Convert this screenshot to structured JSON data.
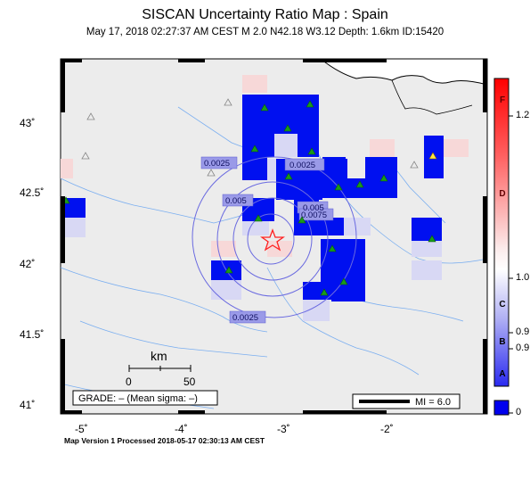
{
  "title": "SISCAN Uncertainty Ratio Map : Spain",
  "subtitle": "May 17, 2018 02:27:37 AM CEST   M 2.0    N42.18 W3.12    Depth: 1.6km    ID:15420",
  "footer": "Map Version 1 Processed 2018-05-17 02:30:13 AM CEST",
  "axes": {
    "y_ticks": [
      "43˚",
      "42.5˚",
      "42˚",
      "41.5˚",
      "41˚"
    ],
    "x_ticks": [
      "-5˚",
      "-4˚",
      "-3˚",
      "-2˚"
    ]
  },
  "scale_bar": {
    "unit": "km",
    "left": "0",
    "right": "50"
  },
  "grade_box": "GRADE: – (Mean sigma: –)",
  "mi_legend": "MI = 6.0",
  "contour_labels": [
    "0.0025",
    "0.0025",
    "0.005",
    "0.005",
    "0.0075",
    "0.0025"
  ],
  "colorbar": {
    "tick_labels": [
      "1.2",
      "1.0",
      "0.9",
      "0.9",
      "0"
    ],
    "grades": [
      "F",
      "D",
      "C",
      "B",
      "A"
    ],
    "colors": {
      "high": "#ff0000",
      "mid": "#ffffff",
      "low": "#0000ff"
    }
  },
  "colors": {
    "land": "#ececec",
    "river": "#7aaef0",
    "contour": "#6a6ae0",
    "epicenter": "#ff2020",
    "station": "#1a9a1a"
  }
}
